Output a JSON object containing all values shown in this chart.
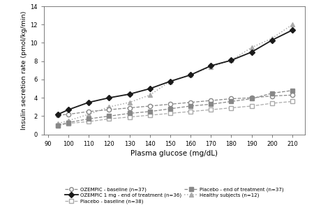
{
  "x": [
    95,
    100,
    110,
    120,
    130,
    140,
    150,
    160,
    170,
    180,
    190,
    200,
    210
  ],
  "ozempic_baseline": [
    2.1,
    2.2,
    2.5,
    2.7,
    2.9,
    3.1,
    3.3,
    3.5,
    3.7,
    3.9,
    4.0,
    4.2,
    4.3
  ],
  "placebo_baseline": [
    1.0,
    1.2,
    1.4,
    1.7,
    1.9,
    2.1,
    2.3,
    2.5,
    2.7,
    2.9,
    3.1,
    3.4,
    3.6
  ],
  "healthy": [
    1.2,
    1.5,
    2.2,
    3.0,
    3.5,
    4.3,
    5.8,
    6.5,
    7.4,
    8.1,
    9.5,
    10.5,
    12.0
  ],
  "ozempic_eot": [
    2.2,
    2.7,
    3.5,
    4.0,
    4.4,
    5.0,
    5.8,
    6.5,
    7.5,
    8.1,
    9.0,
    10.3,
    11.4
  ],
  "placebo_eot": [
    1.0,
    1.3,
    1.7,
    2.0,
    2.3,
    2.5,
    2.8,
    3.1,
    3.3,
    3.6,
    3.9,
    4.5,
    4.8
  ],
  "color_dark": "#1a1a1a",
  "color_mid_dark": "#555555",
  "color_mid": "#888888",
  "color_light": "#aaaaaa",
  "xlabel": "Plasma glucose (mg/dL)",
  "ylabel": "Insulin secretion rate (pmol/kg/min)",
  "xlim": [
    88,
    216
  ],
  "ylim": [
    0,
    14
  ],
  "xticks": [
    90,
    100,
    110,
    120,
    130,
    140,
    150,
    160,
    170,
    180,
    190,
    200,
    210
  ],
  "yticks": [
    0,
    2,
    4,
    6,
    8,
    10,
    12,
    14
  ],
  "legend_ozempic_baseline": "OZEMPIC - baseline (n=37)",
  "legend_placebo_baseline": "Placebo - baseline (n=38)",
  "legend_healthy": "Healthy subjects (n=12)",
  "legend_ozempic_eot": "OZEMPIC 1 mg - end of treatment (n=36)",
  "legend_placebo_eot": "Placebo - end of treatment (n=37)"
}
